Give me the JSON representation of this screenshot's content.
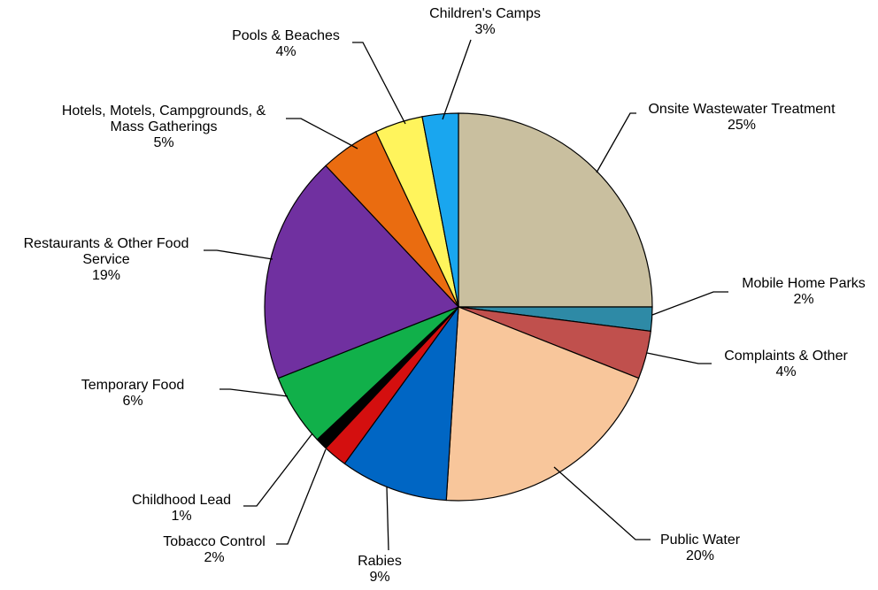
{
  "chart_data": {
    "type": "pie",
    "title": "",
    "slices": [
      {
        "name": "Onsite Wastewater Treatment",
        "label_lines": [
          "Onsite Wastewater Treatment"
        ],
        "pct_label": "25%",
        "value": 25,
        "color": "#c9bf9f"
      },
      {
        "name": "Mobile Home Parks",
        "label_lines": [
          "Mobile Home Parks"
        ],
        "pct_label": "2%",
        "value": 2,
        "color": "#2e8aa6"
      },
      {
        "name": "Complaints & Other",
        "label_lines": [
          "Complaints & Other"
        ],
        "pct_label": "4%",
        "value": 4,
        "color": "#c0504d"
      },
      {
        "name": "Public Water",
        "label_lines": [
          "Public Water"
        ],
        "pct_label": "20%",
        "value": 20,
        "color": "#f8c69b"
      },
      {
        "name": "Rabies",
        "label_lines": [
          "Rabies"
        ],
        "pct_label": "9%",
        "value": 9,
        "color": "#0066c4"
      },
      {
        "name": "Tobacco Control",
        "label_lines": [
          "Tobacco Control"
        ],
        "pct_label": "2%",
        "value": 2,
        "color": "#d40f0f"
      },
      {
        "name": "Childhood Lead",
        "label_lines": [
          "Childhood Lead"
        ],
        "pct_label": "1%",
        "value": 1,
        "color": "#000000"
      },
      {
        "name": "Temporary Food",
        "label_lines": [
          "Temporary Food"
        ],
        "pct_label": "6%",
        "value": 6,
        "color": "#11b04a"
      },
      {
        "name": "Restaurants & Other Food Service",
        "label_lines": [
          "Restaurants & Other Food",
          "Service"
        ],
        "pct_label": "19%",
        "value": 19,
        "color": "#7030a0"
      },
      {
        "name": "Hotels, Motels, Campgrounds, & Mass Gatherings",
        "label_lines": [
          "Hotels, Motels, Campgrounds, &",
          "Mass Gatherings"
        ],
        "pct_label": "5%",
        "value": 5,
        "color": "#ea6c10"
      },
      {
        "name": "Pools & Beaches",
        "label_lines": [
          "Pools & Beaches"
        ],
        "pct_label": "4%",
        "value": 4,
        "color": "#fff45c"
      },
      {
        "name": "Children's Camps",
        "label_lines": [
          "Children's Camps"
        ],
        "pct_label": "3%",
        "value": 3,
        "color": "#19a6ef"
      }
    ]
  }
}
